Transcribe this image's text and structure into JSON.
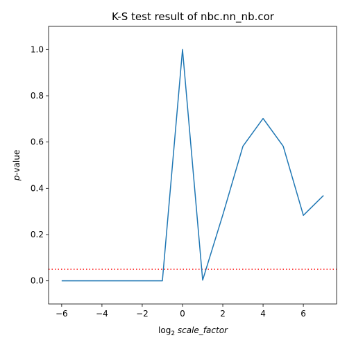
{
  "chart_data": {
    "type": "line",
    "title": "K-S test result of nbc.nn_nb.cor",
    "xlabel": {
      "prefix": "log",
      "subscript": "2",
      "variable": "scale_factor"
    },
    "ylabel": {
      "variable": "p",
      "suffix": "-value"
    },
    "xlim": [
      -6.65,
      7.65
    ],
    "ylim": [
      -0.1,
      1.1
    ],
    "xticks": [
      -6,
      -4,
      -2,
      0,
      2,
      4,
      6
    ],
    "yticks": [
      0.0,
      0.2,
      0.4,
      0.6,
      0.8,
      1.0
    ],
    "grid": false,
    "series": [
      {
        "color": "#1f77b4",
        "x": [
          -6,
          -5,
          -4,
          -3,
          -2,
          -1,
          0,
          1,
          2,
          3,
          4,
          5,
          6,
          7
        ],
        "y": [
          0.0,
          0.0,
          0.0,
          0.0,
          0.0,
          0.0,
          1.0,
          0.003,
          0.285,
          0.582,
          0.702,
          0.582,
          0.283,
          0.369
        ]
      }
    ],
    "reference_line": {
      "y": 0.05,
      "color": "#ff0000",
      "style": "dotted"
    }
  }
}
